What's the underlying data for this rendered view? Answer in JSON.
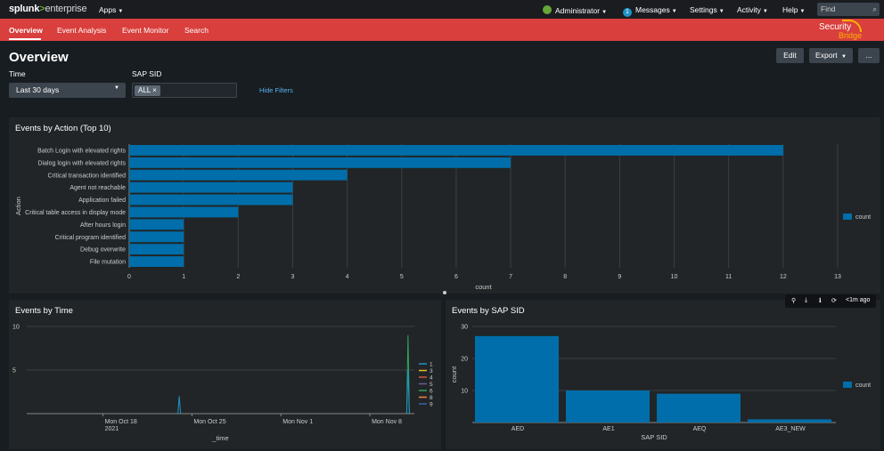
{
  "topbar": {
    "logo_splunk": "splunk",
    "logo_gt": ">",
    "logo_enterprise": "enterprise",
    "apps": "Apps",
    "admin": "Administrator",
    "messages_count": "1",
    "messages": "Messages",
    "settings": "Settings",
    "activity": "Activity",
    "help": "Help",
    "find_placeholder": "Find",
    "caret": "▼",
    "search_glyph": "⌕"
  },
  "appbar": {
    "tabs": [
      "Overview",
      "Event Analysis",
      "Event Monitor",
      "Search"
    ],
    "brand_top": "Security",
    "brand_bottom": "Bridge"
  },
  "page": {
    "title": "Overview",
    "edit": "Edit",
    "export": "Export",
    "more": "...",
    "time_label": "Time",
    "time_value": "Last 30 days",
    "sid_label": "SAP SID",
    "sid_tag": "ALL",
    "sid_tag_x": "×",
    "hide_filters": "Hide Filters"
  },
  "panel_action": {
    "title": "Events by Action (Top 10)",
    "legend": "count"
  },
  "panel_time": {
    "title": "Events by Time"
  },
  "panel_sid": {
    "title": "Events by SAP SID",
    "legend": "count",
    "toolbar_ago": "<1m ago",
    "tool_icons": [
      "⚲",
      "⤓",
      "ℹ",
      "⟳"
    ]
  },
  "colors": {
    "bar": "#006eaa",
    "appbar": "#d93f3c"
  },
  "chart_data": [
    {
      "type": "bar",
      "orientation": "horizontal",
      "title": "Events by Action (Top 10)",
      "xlabel": "count",
      "ylabel": "Action",
      "categories": [
        "Batch Login with elevated rights",
        "Dialog login with elevated rights",
        "Critical transaction identified",
        "Agent not reachable",
        "Application failed",
        "Critical table access in display mode",
        "After hours login",
        "Critical program identified",
        "Debug overwrite",
        "File mutation"
      ],
      "values": [
        12,
        7,
        4,
        3,
        3,
        2,
        1,
        1,
        1,
        1
      ],
      "xlim": [
        0,
        13
      ],
      "xticks": [
        0,
        1,
        2,
        3,
        4,
        5,
        6,
        7,
        8,
        9,
        10,
        11,
        12,
        13
      ],
      "legend": [
        "count"
      ]
    },
    {
      "type": "line",
      "title": "Events by Time",
      "xlabel": "_time",
      "ylabel": "",
      "ylim": [
        0,
        10
      ],
      "yticks": [
        5,
        10
      ],
      "xticks": [
        "Mon Oct 18\n2021",
        "Mon Oct 25",
        "Mon Nov 1",
        "Mon Nov 8"
      ],
      "legend": [
        "1",
        "3",
        "4",
        "5",
        "6",
        "8",
        "9"
      ],
      "series_colors": [
        "#1e93c6",
        "#f2b827",
        "#d6563c",
        "#6a5c9e",
        "#31a35f",
        "#ed8440",
        "#3863a0"
      ],
      "spikes": [
        {
          "date": "Oct 24",
          "series": "1",
          "value": 2
        },
        {
          "date": "Nov 11",
          "series": "6",
          "value": 9
        },
        {
          "date": "Nov 11",
          "series": "1",
          "value": 5
        }
      ]
    },
    {
      "type": "bar",
      "title": "Events by SAP SID",
      "xlabel": "SAP SID",
      "ylabel": "count",
      "categories": [
        "AED",
        "AE1",
        "AEQ",
        "AE3_NEW"
      ],
      "values": [
        27,
        10,
        9,
        1
      ],
      "ylim": [
        0,
        30
      ],
      "yticks": [
        10,
        20,
        30
      ],
      "legend": [
        "count"
      ]
    }
  ]
}
